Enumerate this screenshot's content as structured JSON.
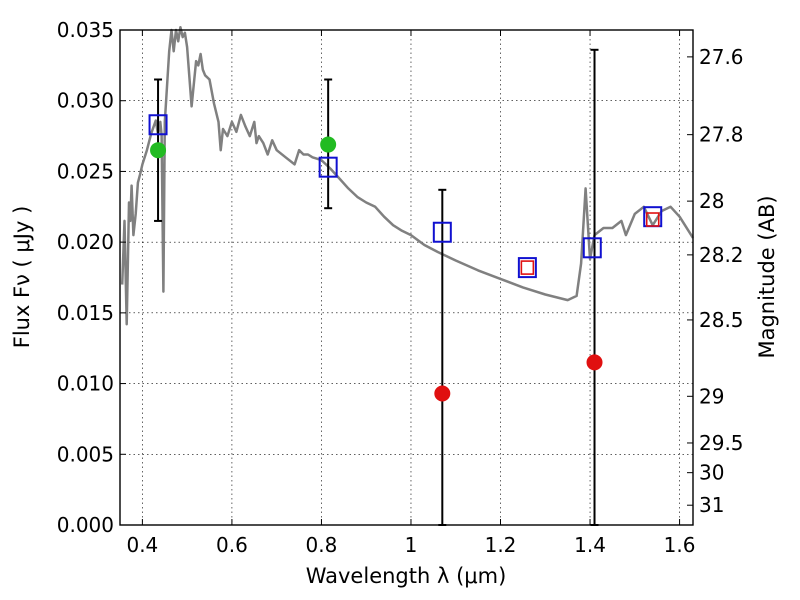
{
  "chart_data": {
    "type": "scatter",
    "xlabel": "Wavelength  λ (μm)",
    "ylabel": "Flux  Fν ( μJy )",
    "ylabel_right": "Magnitude (AB)",
    "xlim": [
      0.35,
      1.63
    ],
    "ylim": [
      0.0,
      0.035
    ],
    "grid": true,
    "x_ticks": [
      0.4,
      0.6,
      0.8,
      1.0,
      1.2,
      1.4,
      1.6
    ],
    "x_tick_labels": [
      "0.4",
      "0.6",
      "0.8",
      "1",
      "1.2",
      "1.4",
      "1.6"
    ],
    "y_ticks": [
      0.0,
      0.005,
      0.01,
      0.015,
      0.02,
      0.025,
      0.03,
      0.035
    ],
    "y_tick_labels": [
      "0.000",
      "0.005",
      "0.010",
      "0.015",
      "0.020",
      "0.025",
      "0.030",
      "0.035"
    ],
    "right_ticks": [
      {
        "label": "27.6",
        "flux": 0.0331
      },
      {
        "label": "27.8",
        "flux": 0.0276
      },
      {
        "label": "28",
        "flux": 0.0229
      },
      {
        "label": "28.2",
        "flux": 0.0191
      },
      {
        "label": "28.5",
        "flux": 0.0145
      },
      {
        "label": "29",
        "flux": 0.0091
      },
      {
        "label": "29.5",
        "flux": 0.0058
      },
      {
        "label": "30",
        "flux": 0.0037
      },
      {
        "label": "31",
        "flux": 0.0014
      }
    ],
    "series": [
      {
        "kind": "line",
        "color": "#808080",
        "x": [
          0.355,
          0.36,
          0.365,
          0.37,
          0.373,
          0.376,
          0.38,
          0.385,
          0.39,
          0.395,
          0.4,
          0.41,
          0.42,
          0.43,
          0.435,
          0.44,
          0.443,
          0.447,
          0.45,
          0.455,
          0.46,
          0.465,
          0.47,
          0.475,
          0.48,
          0.485,
          0.49,
          0.495,
          0.5,
          0.51,
          0.52,
          0.525,
          0.53,
          0.535,
          0.54,
          0.55,
          0.56,
          0.57,
          0.575,
          0.58,
          0.59,
          0.6,
          0.61,
          0.62,
          0.63,
          0.64,
          0.65,
          0.655,
          0.66,
          0.67,
          0.68,
          0.69,
          0.7,
          0.72,
          0.74,
          0.75,
          0.76,
          0.77,
          0.78,
          0.8,
          0.82,
          0.84,
          0.86,
          0.88,
          0.9,
          0.92,
          0.94,
          0.96,
          0.98,
          1.0,
          1.03,
          1.06,
          1.1,
          1.15,
          1.2,
          1.25,
          1.3,
          1.35,
          1.37,
          1.38,
          1.39,
          1.4,
          1.41,
          1.43,
          1.45,
          1.47,
          1.48,
          1.5,
          1.52,
          1.54,
          1.56,
          1.58,
          1.6,
          1.62,
          1.63
        ],
        "y": [
          0.017,
          0.0215,
          0.0142,
          0.0228,
          0.0215,
          0.024,
          0.0205,
          0.022,
          0.0242,
          0.0248,
          0.0255,
          0.0265,
          0.0277,
          0.0286,
          0.0276,
          0.0285,
          0.0276,
          0.0165,
          0.0285,
          0.031,
          0.0335,
          0.035,
          0.0335,
          0.035,
          0.0342,
          0.0352,
          0.0345,
          0.0348,
          0.0338,
          0.0296,
          0.0328,
          0.0325,
          0.0333,
          0.0322,
          0.0318,
          0.0315,
          0.0298,
          0.0285,
          0.0265,
          0.028,
          0.0275,
          0.0285,
          0.0278,
          0.029,
          0.0282,
          0.0275,
          0.0285,
          0.027,
          0.0275,
          0.027,
          0.0262,
          0.0272,
          0.0265,
          0.026,
          0.0255,
          0.0265,
          0.0262,
          0.0262,
          0.026,
          0.0258,
          0.0252,
          0.0245,
          0.0238,
          0.0232,
          0.0228,
          0.0225,
          0.0218,
          0.0212,
          0.0208,
          0.0205,
          0.0198,
          0.0193,
          0.0187,
          0.018,
          0.0174,
          0.0168,
          0.0163,
          0.0159,
          0.0162,
          0.0185,
          0.0238,
          0.0188,
          0.0205,
          0.021,
          0.021,
          0.0215,
          0.0205,
          0.022,
          0.0225,
          0.0212,
          0.0222,
          0.0225,
          0.0218,
          0.0208,
          0.0203
        ]
      },
      {
        "kind": "markers",
        "marker": "square",
        "color": "#1010d0",
        "x": [
          0.435,
          0.815,
          1.07,
          1.26,
          1.405,
          1.54
        ],
        "y": [
          0.0283,
          0.0253,
          0.0207,
          0.0182,
          0.0196,
          0.0218
        ]
      },
      {
        "kind": "markers",
        "marker": "square-small",
        "color": "#e01010",
        "x": [
          1.26,
          1.54
        ],
        "y": [
          0.0182,
          0.0216
        ]
      },
      {
        "kind": "markers",
        "marker": "circle",
        "color": "#22bb22",
        "x": [
          0.435,
          0.815
        ],
        "y": [
          0.0265,
          0.0269
        ],
        "yerr_low": [
          0.0215,
          0.0224
        ],
        "yerr_high": [
          0.0315,
          0.0315
        ]
      },
      {
        "kind": "markers",
        "marker": "circle",
        "color": "#e01010",
        "x": [
          1.07,
          1.41
        ],
        "y": [
          0.0093,
          0.0115
        ],
        "yerr_low": [
          0.0,
          0.0
        ],
        "yerr_high": [
          0.0237,
          0.0336
        ]
      }
    ]
  }
}
